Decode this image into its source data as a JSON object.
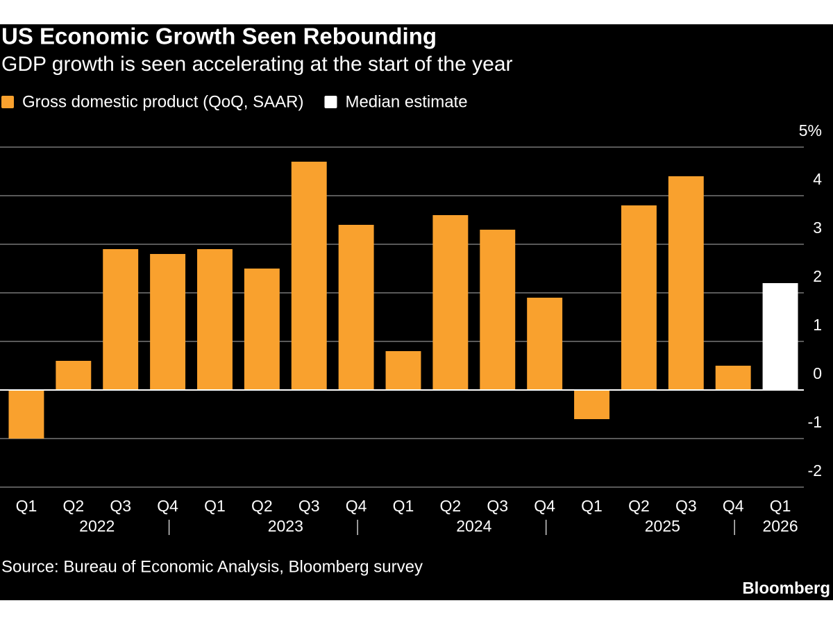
{
  "chart_data": {
    "type": "bar",
    "title": "US Economic Growth Seen Rebounding",
    "subtitle": "GDP growth is seen accelerating at the start of the year",
    "source": "Source: Bureau of Economic Analysis, Bloomberg survey",
    "brand": "Bloomberg",
    "categories": [
      "Q1",
      "Q2",
      "Q3",
      "Q4",
      "Q1",
      "Q2",
      "Q3",
      "Q4",
      "Q1",
      "Q2",
      "Q3",
      "Q4",
      "Q1",
      "Q2",
      "Q3",
      "Q4",
      "Q1"
    ],
    "category_years": [
      "2022",
      "2022",
      "2022",
      "2022",
      "2023",
      "2023",
      "2023",
      "2023",
      "2024",
      "2024",
      "2024",
      "2024",
      "2025",
      "2025",
      "2025",
      "2025",
      "2026"
    ],
    "series": [
      {
        "name": "Gross domestic product (QoQ, SAAR)",
        "color": "#f9a12e",
        "values": [
          -1.0,
          0.6,
          2.9,
          2.8,
          2.9,
          2.5,
          4.7,
          3.4,
          0.8,
          3.6,
          3.3,
          1.9,
          -0.6,
          3.8,
          4.4,
          0.5,
          null
        ]
      },
      {
        "name": "Median estimate",
        "color": "#ffffff",
        "values": [
          null,
          null,
          null,
          null,
          null,
          null,
          null,
          null,
          null,
          null,
          null,
          null,
          null,
          null,
          null,
          null,
          2.2
        ]
      }
    ],
    "ylim": [
      -2,
      5
    ],
    "yticks": [
      -2,
      -1,
      0,
      1,
      2,
      3,
      4,
      {
        "value": 5,
        "label": "5%"
      }
    ],
    "grid": true
  }
}
